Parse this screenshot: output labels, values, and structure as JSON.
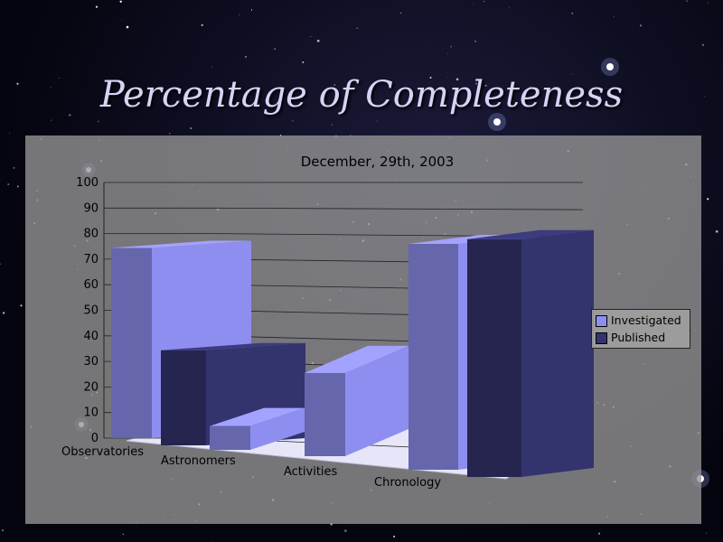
{
  "slide": {
    "title": "Percentage of Completeness"
  },
  "colors": {
    "investigated": "#8e8ef0",
    "published": "#33336e",
    "background": "#05050f"
  },
  "chart_data": {
    "type": "bar",
    "title": "December, 29th, 2003",
    "categories": [
      "Observatories",
      "Astronomers",
      "Activities",
      "Chronology"
    ],
    "series": [
      {
        "name": "Investigated",
        "values": [
          80,
          10,
          35,
          95
        ]
      },
      {
        "name": "Published",
        "values": [
          40,
          0,
          0,
          100
        ]
      }
    ],
    "ylim": [
      0,
      100
    ],
    "yticks": [
      "0",
      "10",
      "20",
      "30",
      "40",
      "50",
      "60",
      "70",
      "80",
      "90",
      "100"
    ],
    "xlabel": "",
    "ylabel": "",
    "grid": true,
    "legend": "right",
    "style": "3d"
  }
}
